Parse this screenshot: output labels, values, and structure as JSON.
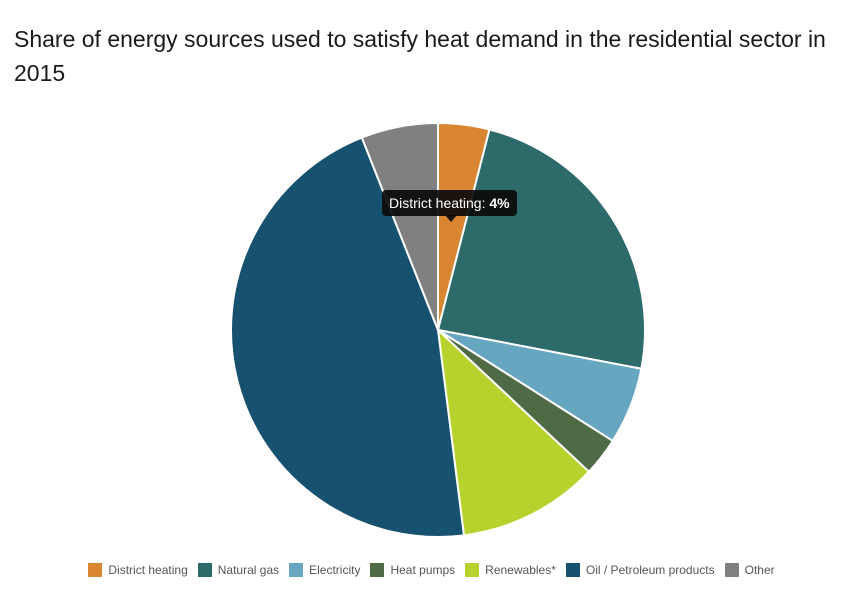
{
  "chart_data": {
    "type": "pie",
    "title": "Share of energy sources used to satisfy heat demand in the residential sector in 2015",
    "slices": [
      {
        "name": "District heating",
        "value": 4,
        "color": "#d98531"
      },
      {
        "name": "Natural gas",
        "value": 24,
        "color": "#2d6b6b"
      },
      {
        "name": "Electricity",
        "value": 6,
        "color": "#67a6c1"
      },
      {
        "name": "Heat pumps",
        "value": 3,
        "color": "#4e6b45"
      },
      {
        "name": "Renewables*",
        "value": 11,
        "color": "#b6d22c"
      },
      {
        "name": "Oil / Petroleum products",
        "value": 46,
        "color": "#16516f"
      },
      {
        "name": "Other",
        "value": 6,
        "color": "#808080"
      }
    ],
    "legend_position": "bottom"
  },
  "tooltip": {
    "label": "District heating: ",
    "value": "4%"
  }
}
